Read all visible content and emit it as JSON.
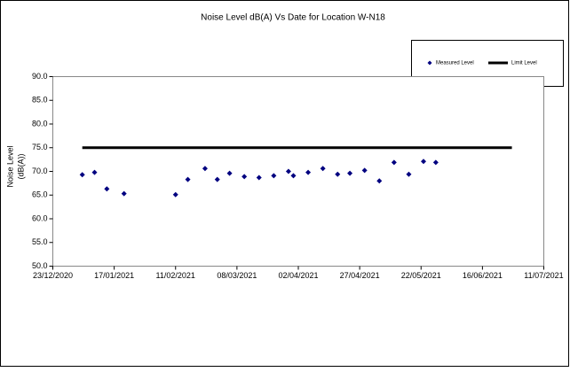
{
  "chart_data": {
    "type": "scatter",
    "title": "Noise Level dB(A) Vs Date for Location W-N18",
    "ylabel": [
      "Noise Level",
      "(dB(A))"
    ],
    "xlim": [
      "2020-12-23",
      "2021-07-11"
    ],
    "xticks": [
      {
        "value": "2020-12-23",
        "label": "23/12/2020"
      },
      {
        "value": "2021-01-17",
        "label": "17/01/2021"
      },
      {
        "value": "2021-02-11",
        "label": "11/02/2021"
      },
      {
        "value": "2021-03-08",
        "label": "08/03/2021"
      },
      {
        "value": "2021-04-02",
        "label": "02/04/2021"
      },
      {
        "value": "2021-04-27",
        "label": "27/04/2021"
      },
      {
        "value": "2021-05-22",
        "label": "22/05/2021"
      },
      {
        "value": "2021-06-16",
        "label": "16/06/2021"
      },
      {
        "value": "2021-07-11",
        "label": "11/07/2021"
      }
    ],
    "ylim": [
      50,
      90
    ],
    "yticks": [
      {
        "value": 50,
        "label": "50.0"
      },
      {
        "value": 55,
        "label": "55.0"
      },
      {
        "value": 60,
        "label": "60.0"
      },
      {
        "value": 65,
        "label": "65.0"
      },
      {
        "value": 70,
        "label": "70.0"
      },
      {
        "value": 75,
        "label": "75.0"
      },
      {
        "value": 80,
        "label": "80.0"
      },
      {
        "value": 85,
        "label": "85.0"
      },
      {
        "value": 90,
        "label": "90.0"
      }
    ],
    "grid": false,
    "legend": "top-right",
    "series": [
      {
        "name": "Measured Level",
        "color": "#000080",
        "marker": "diamond",
        "x": [
          "2021-01-04",
          "2021-01-09",
          "2021-01-14",
          "2021-01-21",
          "2021-02-11",
          "2021-02-16",
          "2021-02-23",
          "2021-02-28",
          "2021-03-05",
          "2021-03-11",
          "2021-03-17",
          "2021-03-23",
          "2021-03-29",
          "2021-03-31",
          "2021-04-06",
          "2021-04-12",
          "2021-04-18",
          "2021-04-23",
          "2021-04-29",
          "2021-05-05",
          "2021-05-11",
          "2021-05-17",
          "2021-05-23",
          "2021-05-28"
        ],
        "values": [
          69.3,
          69.8,
          66.3,
          65.3,
          65.1,
          68.3,
          70.6,
          68.3,
          69.6,
          68.9,
          68.7,
          69.1,
          70.0,
          69.1,
          69.8,
          70.6,
          69.4,
          69.6,
          70.2,
          68.0,
          71.9,
          69.4,
          72.1,
          71.9
        ]
      },
      {
        "name": "Limit Level",
        "color": "#000000",
        "marker": "line",
        "x": [
          "2021-01-04",
          "2021-06-28"
        ],
        "values": [
          75,
          75
        ]
      }
    ]
  }
}
